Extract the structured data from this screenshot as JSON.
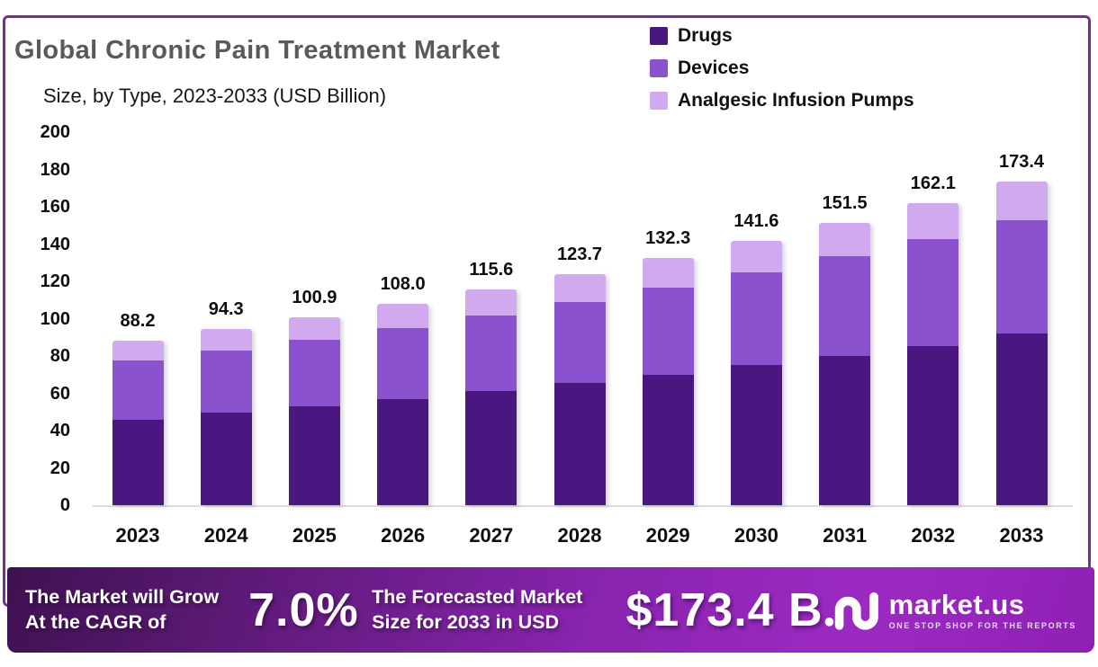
{
  "header": {
    "title": "Global Chronic Pain Treatment Market",
    "subtitle": "Size, by Type, 2023-2033 (USD Billion)"
  },
  "chart_data": {
    "type": "bar",
    "stacked": true,
    "title": "Global Chronic Pain Treatment Market Size, by Type, 2023-2033 (USD Billion)",
    "categories": [
      "2023",
      "2024",
      "2025",
      "2026",
      "2027",
      "2028",
      "2029",
      "2030",
      "2031",
      "2032",
      "2033"
    ],
    "series": [
      {
        "name": "Drugs",
        "color": "#4a1780",
        "values": [
          46.0,
          49.5,
          53.0,
          57.0,
          61.0,
          65.5,
          70.0,
          75.0,
          80.0,
          85.5,
          92.0
        ]
      },
      {
        "name": "Devices",
        "color": "#8a52cf",
        "values": [
          31.5,
          33.5,
          35.8,
          38.0,
          40.8,
          43.5,
          46.5,
          49.8,
          53.5,
          57.3,
          61.0
        ]
      },
      {
        "name": "Analgesic Infusion Pumps",
        "color": "#d0a9ee",
        "values": [
          10.7,
          11.3,
          12.1,
          13.0,
          13.8,
          14.7,
          15.8,
          16.8,
          18.0,
          19.3,
          20.4
        ]
      }
    ],
    "totals_display": [
      "88.2",
      "94.3",
      "100.9",
      "108.0",
      "115.6",
      "123.7",
      "132.3",
      "141.6",
      "151.5",
      "162.1",
      "173.4"
    ],
    "xlabel": "",
    "ylabel": "",
    "ylim": [
      0,
      200
    ],
    "ytick_step": 20,
    "grid": false,
    "legend_position": "top-right"
  },
  "banner": {
    "grow_line1": "The Market will Grow",
    "grow_line2": "At the CAGR of",
    "cagr": "7.0%",
    "forecast_line1": "The Forecasted Market",
    "forecast_line2": "Size for 2033 in USD",
    "forecast_value": "$173.4 B",
    "brand": "market.us",
    "tagline": "ONE STOP SHOP FOR THE REPORTS"
  },
  "colors": {
    "frame_border": "#7b2b93",
    "title_text": "#595a5e",
    "banner_gradient_start": "#3f1150",
    "banner_gradient_end": "#9c2ac2",
    "axis_line": "#dcdcdc"
  }
}
